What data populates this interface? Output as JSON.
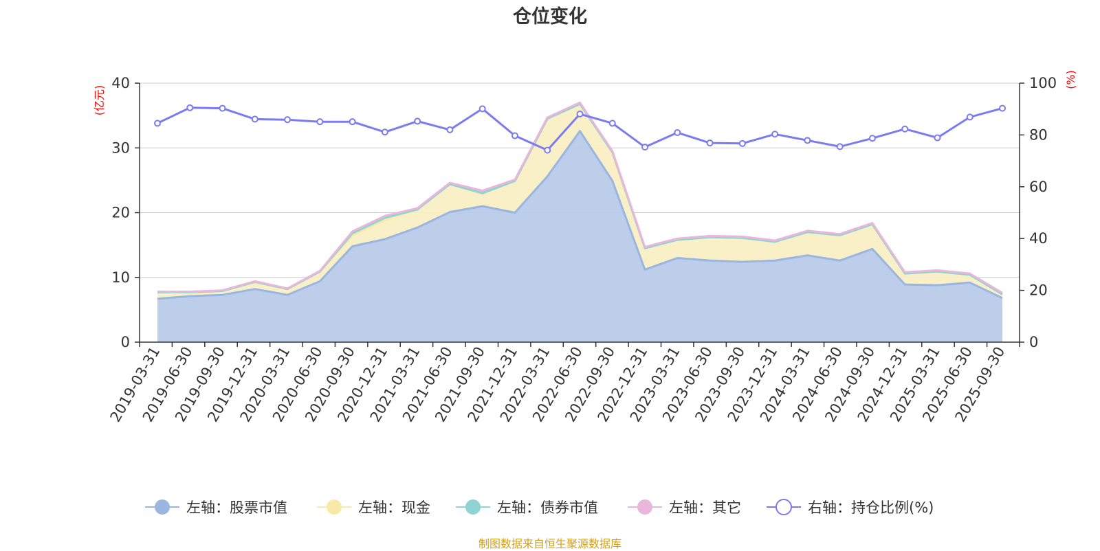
{
  "title": "仓位变化",
  "source": "制图数据来自恒生聚源数据库",
  "colors": {
    "stock": "#9ab6e0",
    "stock_fill": "#b8cbe8",
    "cash": "#f7e9a8",
    "cash_fill": "#faeec2",
    "bond": "#8fd3d3",
    "other": "#e9b7d9",
    "ratio": "#7b7bf0",
    "axis": "#333333",
    "grid": "#cccccc",
    "unit": "#ff0000"
  },
  "chart_data": {
    "type": "area",
    "title": "仓位变化",
    "left_axis": {
      "unit": "(亿元)",
      "ylim": [
        0,
        40
      ],
      "ticks": [
        0,
        10,
        20,
        30,
        40
      ]
    },
    "right_axis": {
      "unit": "(%)",
      "ylim": [
        0,
        100
      ],
      "ticks": [
        0,
        20,
        40,
        60,
        80,
        100
      ]
    },
    "grid": true,
    "legend_position": "bottom",
    "categories": [
      "2019-03-31",
      "2019-06-30",
      "2019-09-30",
      "2019-12-31",
      "2020-03-31",
      "2020-06-30",
      "2020-09-30",
      "2020-12-31",
      "2021-03-31",
      "2021-06-30",
      "2021-09-30",
      "2021-12-31",
      "2022-03-31",
      "2022-06-30",
      "2022-09-30",
      "2022-12-31",
      "2023-03-31",
      "2023-06-30",
      "2023-09-30",
      "2023-12-31",
      "2024-03-31",
      "2024-06-30",
      "2024-09-30",
      "2024-12-31",
      "2025-03-31",
      "2025-06-30",
      "2025-09-30"
    ],
    "series": [
      {
        "name": "左轴：股票市值",
        "axis": "left",
        "kind": "stacked-area",
        "symbol": "circle",
        "values": [
          6.7,
          7.1,
          7.3,
          8.2,
          7.3,
          9.4,
          14.8,
          15.9,
          17.7,
          20.1,
          21.0,
          20.0,
          25.6,
          32.6,
          24.9,
          11.2,
          13.0,
          12.6,
          12.4,
          12.6,
          13.4,
          12.6,
          14.4,
          8.9,
          8.8,
          9.2,
          6.8
        ]
      },
      {
        "name": "左轴：现金",
        "axis": "left",
        "kind": "stacked-area",
        "symbol": "circle",
        "values": [
          1.0,
          0.6,
          0.6,
          1.1,
          0.9,
          1.5,
          1.7,
          3.0,
          2.8,
          4.3,
          1.9,
          4.9,
          8.9,
          4.2,
          4.4,
          3.3,
          2.8,
          3.6,
          3.7,
          2.9,
          3.6,
          3.9,
          3.8,
          1.7,
          2.1,
          1.2,
          0.6
        ]
      },
      {
        "name": "左轴：债券市值",
        "axis": "left",
        "kind": "stacked-area",
        "symbol": "circle",
        "values": [
          0,
          0,
          0,
          0,
          0,
          0,
          0.3,
          0.3,
          0,
          0,
          0.1,
          0,
          0,
          0,
          0,
          0,
          0,
          0,
          0,
          0,
          0,
          0,
          0,
          0,
          0,
          0,
          0
        ]
      },
      {
        "name": "左轴：其它",
        "axis": "left",
        "kind": "stacked-area",
        "symbol": "circle",
        "values": [
          0.1,
          0.1,
          0.1,
          0.1,
          0.1,
          0.1,
          0.3,
          0.3,
          0.2,
          0.2,
          0.4,
          0.2,
          0.2,
          0.2,
          0.2,
          0.2,
          0.2,
          0.2,
          0.2,
          0.2,
          0.2,
          0.2,
          0.2,
          0.2,
          0.2,
          0.2,
          0.2
        ]
      },
      {
        "name": "右轴：持仓比例(%)",
        "axis": "right",
        "kind": "line",
        "symbol": "hollow-circle",
        "values": [
          84.5,
          90.5,
          90.3,
          86.1,
          85.9,
          85.1,
          85.1,
          81.1,
          85.3,
          82.0,
          90.1,
          79.7,
          74.1,
          88.1,
          84.5,
          75.3,
          80.9,
          76.9,
          76.7,
          80.3,
          77.9,
          75.5,
          78.7,
          82.3,
          78.9,
          86.9,
          90.3
        ]
      }
    ]
  }
}
